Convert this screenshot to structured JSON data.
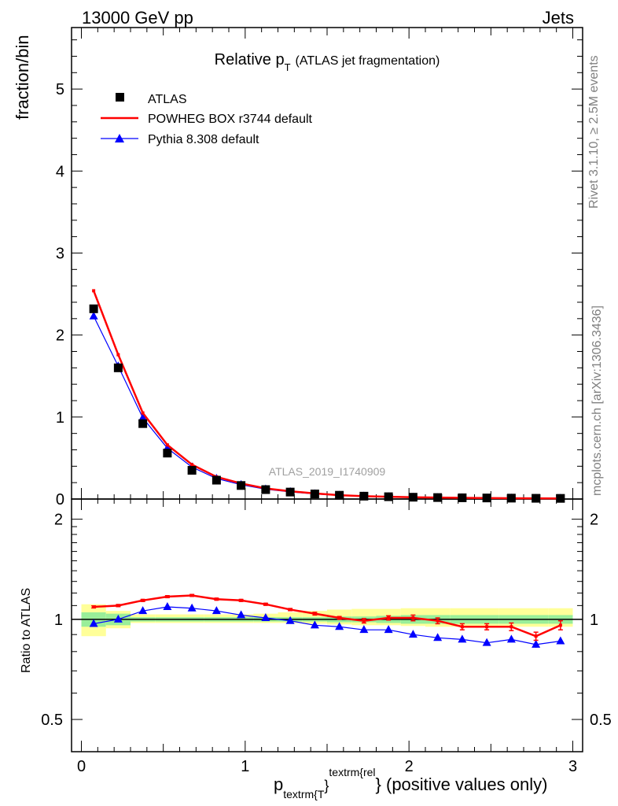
{
  "header": {
    "left": "13000 GeV pp",
    "right": "Jets"
  },
  "plot": {
    "title_main": "Relative p",
    "title_sub": "T",
    "title_paren": "(ATLAS jet fragmentation)",
    "ylabel": "fraction/bin",
    "ratio_ylabel": "Ratio to ATLAS",
    "watermark": "ATLAS_2019_I1740909",
    "side_text_top": "Rivet 3.1.10, ≥ 2.5M events",
    "side_text_bottom": "mcplots.cern.ch [arXiv:1306.3436]",
    "xlabel_p": "p",
    "xlabel_sub": "textrm{T",
    "xlabel_brace1": "}",
    "xlabel_sup": "textrm{rel",
    "xlabel_brace2": "}",
    "xlabel_rest": " (positive values only)"
  },
  "legend": [
    {
      "label": "ATLAS",
      "color": "#000000",
      "marker": "square"
    },
    {
      "label": "POWHEG BOX r3744 default",
      "color": "#ff0000",
      "marker": "line"
    },
    {
      "label": "Pythia 8.308 default",
      "color": "#0000ff",
      "marker": "triangle"
    }
  ],
  "chart_data": [
    {
      "type": "line",
      "title": "Relative pT (ATLAS jet fragmentation)",
      "xlabel": "",
      "ylabel": "fraction/bin",
      "xlim": [
        -0.06,
        3.06
      ],
      "ylim": [
        0,
        5.75
      ],
      "yticks": [
        0,
        1,
        2,
        3,
        4,
        5
      ],
      "xticks": [
        0,
        1,
        2,
        3
      ],
      "legend_position": "top-left",
      "x": [
        0.075,
        0.225,
        0.375,
        0.525,
        0.675,
        0.825,
        0.975,
        1.125,
        1.275,
        1.425,
        1.575,
        1.725,
        1.875,
        2.025,
        2.175,
        2.325,
        2.475,
        2.625,
        2.775,
        2.925
      ],
      "series": [
        {
          "name": "ATLAS",
          "color": "#000000",
          "values": [
            2.32,
            1.6,
            0.92,
            0.56,
            0.35,
            0.23,
            0.165,
            0.115,
            0.085,
            0.062,
            0.046,
            0.035,
            0.028,
            0.022,
            0.018,
            0.015,
            0.013,
            0.011,
            0.009,
            0.008
          ]
        },
        {
          "name": "POWHEG BOX r3744 default",
          "color": "#ff0000",
          "values": [
            2.54,
            1.76,
            1.05,
            0.66,
            0.42,
            0.27,
            0.19,
            0.13,
            0.095,
            0.068,
            0.047,
            0.035,
            0.028,
            0.022,
            0.018,
            0.014,
            0.012,
            0.01,
            0.008,
            0.0075
          ]
        },
        {
          "name": "Pythia 8.308 default",
          "color": "#0000ff",
          "values": [
            2.23,
            1.62,
            0.99,
            0.62,
            0.39,
            0.25,
            0.175,
            0.12,
            0.087,
            0.062,
            0.044,
            0.033,
            0.026,
            0.02,
            0.016,
            0.013,
            0.011,
            0.0095,
            0.0075,
            0.0068
          ]
        }
      ]
    },
    {
      "type": "line",
      "title": "",
      "xlabel": "p textrm{T}^{textrm{rel}} (positive values only)",
      "ylabel": "Ratio to ATLAS",
      "xlim": [
        -0.06,
        3.06
      ],
      "ylim": [
        0.4,
        2.3
      ],
      "yticks": [
        0.5,
        1,
        2
      ],
      "xticks": [
        0,
        1,
        2,
        3
      ],
      "reference_line": 1,
      "x": [
        0.075,
        0.225,
        0.375,
        0.525,
        0.675,
        0.825,
        0.975,
        1.125,
        1.275,
        1.425,
        1.575,
        1.725,
        1.875,
        2.025,
        2.175,
        2.325,
        2.475,
        2.625,
        2.775,
        2.925
      ],
      "uncertainty_bands": {
        "stat": [
          [
            0.95,
            1.05
          ],
          [
            0.96,
            1.04
          ],
          [
            0.985,
            1.015
          ],
          [
            0.985,
            1.015
          ],
          [
            0.985,
            1.015
          ],
          [
            0.985,
            1.015
          ],
          [
            0.985,
            1.015
          ],
          [
            0.985,
            1.015
          ],
          [
            0.985,
            1.015
          ],
          [
            0.985,
            1.015
          ],
          [
            0.98,
            1.02
          ],
          [
            0.98,
            1.02
          ],
          [
            0.975,
            1.025
          ],
          [
            0.97,
            1.03
          ],
          [
            0.97,
            1.03
          ],
          [
            0.97,
            1.03
          ],
          [
            0.97,
            1.03
          ],
          [
            0.97,
            1.03
          ],
          [
            0.97,
            1.03
          ],
          [
            0.97,
            1.03
          ]
        ],
        "total": [
          [
            0.89,
            1.11
          ],
          [
            0.94,
            1.06
          ],
          [
            0.975,
            1.035
          ],
          [
            0.975,
            1.035
          ],
          [
            0.975,
            1.035
          ],
          [
            0.975,
            1.035
          ],
          [
            0.975,
            1.035
          ],
          [
            0.975,
            1.04
          ],
          [
            0.975,
            1.05
          ],
          [
            0.97,
            1.06
          ],
          [
            0.965,
            1.07
          ],
          [
            0.96,
            1.075
          ],
          [
            0.96,
            1.075
          ],
          [
            0.955,
            1.08
          ],
          [
            0.95,
            1.08
          ],
          [
            0.95,
            1.08
          ],
          [
            0.95,
            1.08
          ],
          [
            0.95,
            1.08
          ],
          [
            0.95,
            1.08
          ],
          [
            0.95,
            1.08
          ]
        ]
      },
      "series": [
        {
          "name": "POWHEG BOX r3744 default",
          "color": "#ff0000",
          "values": [
            1.09,
            1.1,
            1.14,
            1.17,
            1.18,
            1.15,
            1.14,
            1.11,
            1.07,
            1.04,
            1.01,
            0.99,
            1.01,
            1.01,
            0.99,
            0.95,
            0.95,
            0.95,
            0.89,
            0.96
          ],
          "errors": [
            0.008,
            0.008,
            0.008,
            0.008,
            0.008,
            0.008,
            0.008,
            0.008,
            0.008,
            0.01,
            0.01,
            0.015,
            0.015,
            0.02,
            0.02,
            0.02,
            0.02,
            0.025,
            0.025,
            0.03
          ]
        },
        {
          "name": "Pythia 8.308 default",
          "color": "#0000ff",
          "values": [
            0.97,
            1.0,
            1.06,
            1.09,
            1.08,
            1.06,
            1.03,
            1.01,
            0.99,
            0.96,
            0.95,
            0.93,
            0.93,
            0.9,
            0.88,
            0.87,
            0.85,
            0.87,
            0.84,
            0.86
          ],
          "errors": [
            0.006,
            0.006,
            0.006,
            0.006,
            0.006,
            0.006,
            0.006,
            0.006,
            0.008,
            0.008,
            0.008,
            0.01,
            0.01,
            0.012,
            0.012,
            0.015,
            0.015,
            0.015,
            0.018,
            0.018
          ]
        }
      ]
    }
  ]
}
